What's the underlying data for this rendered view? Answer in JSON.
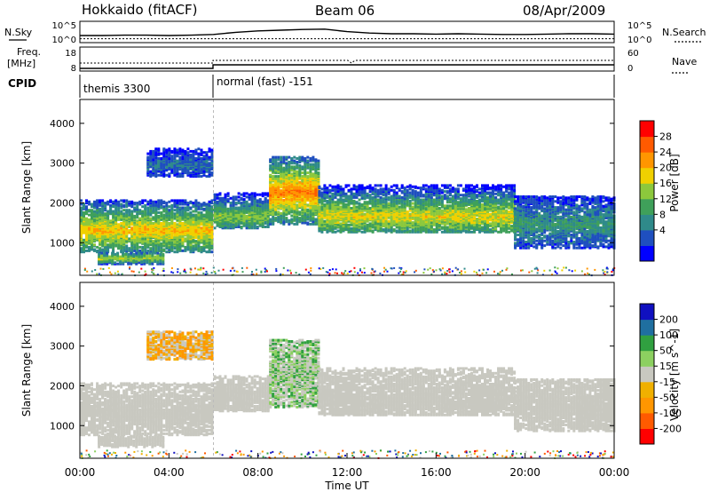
{
  "header": {
    "station": "Hokkaido (fitACF)",
    "beam": "Beam 06",
    "date": "08/Apr/2009"
  },
  "colors": {
    "power_scale": [
      "#0000ff",
      "#1f4fbf",
      "#2f8a8a",
      "#3fa05a",
      "#8cc83c",
      "#f0d000",
      "#ff9600",
      "#ff5a00",
      "#ff0000"
    ],
    "velocity_scale": [
      "#ff0000",
      "#ff5a00",
      "#ff9600",
      "#f0b000",
      "#c8c8c0",
      "#8cd060",
      "#30a040",
      "#1f6fa0",
      "#1010c0"
    ],
    "ground_scatter": "#b9b9b2"
  },
  "chart_data": [
    {
      "type": "line",
      "name": "nsky-nsearch-panel",
      "left_label": "N.Sky",
      "right_label": "N.Search",
      "y_ticks_left": [
        "10^5",
        "10^0"
      ],
      "y_ticks_right": [
        "10^5",
        "10^0"
      ],
      "x": [
        0,
        1,
        2,
        3,
        4,
        5,
        6,
        7,
        8,
        9,
        10,
        11,
        12,
        13,
        14,
        15,
        16,
        17,
        18,
        19,
        20,
        21,
        22,
        23,
        24
      ],
      "series": [
        {
          "name": "N.Sky",
          "values": [
            1.5,
            1.5,
            1.6,
            1.6,
            1.5,
            1.6,
            1.8,
            2.4,
            2.8,
            3.0,
            3.2,
            3.3,
            2.6,
            2.2,
            2.0,
            2.0,
            1.9,
            2.0,
            1.9,
            1.8,
            1.8,
            1.9,
            2.0,
            2.0,
            1.9
          ]
        },
        {
          "name": "N.Search",
          "values": [
            0.6,
            0.6,
            0.6,
            0.6,
            0.6,
            0.6,
            0.6,
            0.6,
            0.6,
            0.6,
            0.6,
            0.6,
            0.6,
            0.6,
            0.6,
            0.6,
            0.6,
            0.6,
            0.6,
            0.6,
            0.6,
            0.6,
            0.6,
            0.6,
            0.6
          ]
        }
      ]
    },
    {
      "type": "line",
      "name": "freq-nave-panel",
      "left_label": "Freq.",
      "left_unit": "[MHz]",
      "right_label": "Nave",
      "y_ticks_left": [
        "18",
        "8"
      ],
      "y_ticks_right": [
        "60",
        "0"
      ],
      "cpid_label": "CPID",
      "cpid_segments": [
        {
          "label": "themis 3300",
          "start": 0,
          "end": 6
        },
        {
          "label": "normal (fast) -151",
          "start": 6,
          "end": 24
        }
      ]
    },
    {
      "type": "heatmap",
      "name": "power-panel",
      "ylabel": "Slant Range [km]",
      "yticks": [
        "4000",
        "3000",
        "2000",
        "1000"
      ],
      "colorbar_label": "Power [dB]",
      "colorbar_ticks": [
        "28",
        "24",
        "20",
        "16",
        "12",
        "8",
        "4"
      ],
      "x_range": [
        0,
        24
      ],
      "y_range": [
        180,
        4600
      ],
      "regions": [
        {
          "t0": 0.0,
          "t1": 6.0,
          "r0": 800,
          "r1": 2100,
          "peak": 1350,
          "value": 22
        },
        {
          "t0": 0.8,
          "t1": 3.8,
          "r0": 500,
          "r1": 800,
          "peak": 650,
          "value": 18
        },
        {
          "t0": 3.0,
          "t1": 6.0,
          "r0": 2700,
          "r1": 3400,
          "peak": 3000,
          "value": 6
        },
        {
          "t0": 6.0,
          "t1": 8.5,
          "r0": 1400,
          "r1": 2300,
          "peak": 1700,
          "value": 16
        },
        {
          "t0": 8.5,
          "t1": 10.7,
          "r0": 1500,
          "r1": 3200,
          "peak": 2300,
          "value": 26
        },
        {
          "t0": 10.7,
          "t1": 19.5,
          "r0": 1300,
          "r1": 2500,
          "peak": 1700,
          "value": 20
        },
        {
          "t0": 19.5,
          "t1": 24.0,
          "r0": 900,
          "r1": 2200,
          "peak": 1500,
          "value": 10
        }
      ]
    },
    {
      "type": "heatmap",
      "name": "velocity-panel",
      "ylabel": "Slant Range [km]",
      "yticks": [
        "4000",
        "3000",
        "2000",
        "1000"
      ],
      "colorbar_label": "Velocity [m s^-1]",
      "colorbar_ticks": [
        "200",
        "100",
        "50",
        "15",
        "-15",
        "-50",
        "-100",
        "-200"
      ],
      "x_range": [
        0,
        24
      ],
      "y_range": [
        180,
        4600
      ],
      "xlabel": "Time UT",
      "xticks": [
        "00:00",
        "04:00",
        "08:00",
        "12:00",
        "16:00",
        "20:00",
        "00:00"
      ],
      "regions": [
        {
          "t0": 0.0,
          "t1": 6.0,
          "r0": 800,
          "r1": 2100,
          "peak": 1350,
          "value": 0
        },
        {
          "t0": 0.8,
          "t1": 3.8,
          "r0": 500,
          "r1": 800,
          "peak": 650,
          "value": 0
        },
        {
          "t0": 3.0,
          "t1": 6.0,
          "r0": 2700,
          "r1": 3400,
          "peak": 3000,
          "value": -60
        },
        {
          "t0": 6.0,
          "t1": 8.5,
          "r0": 1400,
          "r1": 2300,
          "peak": 1700,
          "value": 0
        },
        {
          "t0": 8.5,
          "t1": 10.7,
          "r0": 1500,
          "r1": 3200,
          "peak": 2300,
          "value": 40
        },
        {
          "t0": 10.7,
          "t1": 19.5,
          "r0": 1300,
          "r1": 2500,
          "peak": 1700,
          "value": 0
        },
        {
          "t0": 19.5,
          "t1": 24.0,
          "r0": 900,
          "r1": 2200,
          "peak": 1500,
          "value": 0
        }
      ]
    }
  ]
}
